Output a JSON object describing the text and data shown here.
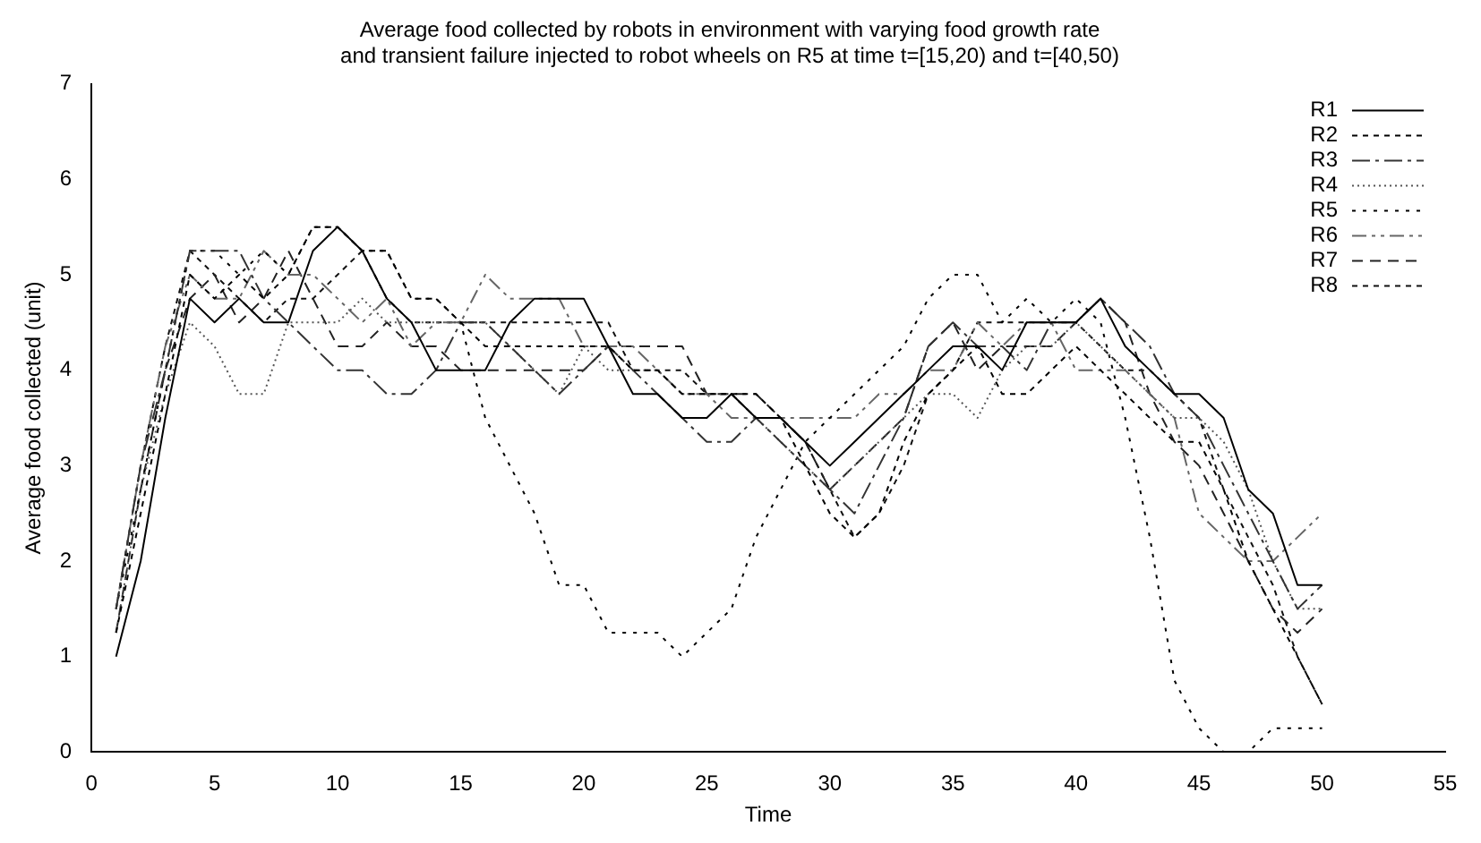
{
  "chart_data": {
    "type": "line",
    "title": "Average food collected by robots in environment with varying food growth rate\nand transient failure injected to robot wheels on R5 at time t=[15,20) and t=[40,50)",
    "xlabel": "Time",
    "ylabel": "Average food collected (unit)",
    "x": [
      1,
      2,
      3,
      4,
      5,
      6,
      7,
      8,
      9,
      10,
      11,
      12,
      13,
      14,
      15,
      16,
      17,
      18,
      19,
      20,
      21,
      22,
      23,
      24,
      25,
      26,
      27,
      28,
      29,
      30,
      31,
      32,
      33,
      34,
      35,
      36,
      37,
      38,
      39,
      40,
      41,
      42,
      43,
      44,
      45,
      46,
      47,
      48,
      49,
      50
    ],
    "xlim": [
      0,
      55
    ],
    "xticks": [
      0,
      5,
      10,
      15,
      20,
      25,
      30,
      35,
      40,
      45,
      50,
      55
    ],
    "ylim": [
      0,
      7
    ],
    "yticks": [
      0,
      1,
      2,
      3,
      4,
      5,
      6,
      7
    ],
    "grid": false,
    "legend": "top right",
    "marker": "none",
    "series": [
      {
        "name": "R1",
        "color": "#000000",
        "line_style": "solid",
        "values": [
          1,
          2,
          3.5,
          4.75,
          4.5,
          4.75,
          4.5,
          4.5,
          5.25,
          5.5,
          5.25,
          4.75,
          4.5,
          4,
          4,
          4,
          4.5,
          4.75,
          4.75,
          4.75,
          4.25,
          3.75,
          3.75,
          3.5,
          3.5,
          3.75,
          3.5,
          3.5,
          3.25,
          3,
          3.25,
          3.5,
          3.75,
          4,
          4.25,
          4.25,
          4,
          4.5,
          4.5,
          4.5,
          4.75,
          4.25,
          4,
          3.75,
          3.75,
          3.5,
          2.75,
          2.5,
          1.75,
          1.75
        ]
      },
      {
        "name": "R2",
        "color": "#000000",
        "line_style": "dashed",
        "values": [
          1.25,
          2.5,
          3.75,
          5,
          4.75,
          5,
          4.75,
          5,
          5.5,
          5.5,
          5.25,
          5.25,
          4.75,
          4.75,
          4.5,
          4.25,
          4.25,
          4.25,
          4.25,
          4.25,
          4.25,
          4,
          4,
          3.75,
          3.75,
          3.75,
          3.75,
          3.5,
          3,
          2.5,
          2.25,
          2.5,
          3.25,
          3.75,
          4,
          4.25,
          3.75,
          3.75,
          4,
          4.25,
          4,
          3.75,
          3.5,
          3.25,
          3.25,
          2.75,
          2,
          1.5,
          1,
          0.5
        ]
      },
      {
        "name": "R3",
        "color": "#333333",
        "line_style": "dashed",
        "values": [
          1.5,
          3,
          4,
          5.25,
          5.25,
          5.25,
          4.75,
          4.5,
          4.25,
          4,
          4,
          3.75,
          3.75,
          4,
          4.5,
          4.5,
          4.25,
          4,
          3.75,
          4,
          4.25,
          4,
          3.75,
          3.5,
          3.25,
          3.25,
          3.5,
          3.25,
          3,
          2.75,
          2.5,
          3,
          3.5,
          4.25,
          4.5,
          4.25,
          4.25,
          4,
          4.5,
          4.5,
          4.75,
          4.5,
          4.25,
          3.75,
          3.5,
          3,
          2.5,
          2,
          1.5,
          1.75
        ]
      },
      {
        "name": "R4",
        "color": "#555555",
        "line_style": "dotted",
        "values": [
          1.25,
          2.75,
          3.75,
          4.5,
          4.25,
          3.75,
          3.75,
          4.5,
          4.5,
          4.5,
          4.75,
          4.5,
          4.5,
          4.5,
          4.5,
          4.5,
          4.25,
          4,
          3.75,
          4.25,
          4,
          4,
          4,
          3.75,
          3.75,
          3.75,
          3.5,
          3.25,
          3,
          2.75,
          3,
          3.25,
          3.5,
          3.75,
          3.75,
          3.5,
          4,
          4.25,
          4.25,
          4.5,
          4.25,
          4,
          3.75,
          3.5,
          3.5,
          3.25,
          2.75,
          2,
          1.5,
          1.5
        ]
      },
      {
        "name": "R5",
        "color": "#000000",
        "line_style": "dashed",
        "values": [
          1.5,
          2.75,
          4,
          5.25,
          5.25,
          5,
          5.25,
          5,
          5.5,
          5.5,
          5.25,
          5.25,
          4.75,
          4.75,
          4.5,
          3.5,
          3,
          2.5,
          1.75,
          1.75,
          1.25,
          1.25,
          1.25,
          1,
          1.25,
          1.5,
          2.25,
          2.75,
          3.25,
          3.5,
          3.75,
          4,
          4.25,
          4.75,
          5,
          5,
          4.5,
          4.75,
          4.5,
          4.75,
          4.5,
          3.5,
          2.25,
          0.75,
          0.25,
          0,
          0,
          0.25,
          0.25,
          0.25
        ]
      },
      {
        "name": "R6",
        "color": "#666666",
        "line_style": "dashed",
        "values": [
          1.5,
          3,
          4.25,
          5,
          4.75,
          4.75,
          5.25,
          5,
          5,
          4.75,
          4.5,
          4.75,
          4.25,
          4.5,
          4.5,
          5,
          4.75,
          4.75,
          4.75,
          4.25,
          4.25,
          4.25,
          4,
          3.75,
          3.75,
          3.5,
          3.5,
          3.5,
          3.5,
          3.5,
          3.5,
          3.75,
          3.75,
          4,
          4,
          4.5,
          4.25,
          4.5,
          4.5,
          4,
          4,
          4,
          3.75,
          3.5,
          2.5,
          2.25,
          2,
          2,
          2.25,
          2.5
        ]
      },
      {
        "name": "R7",
        "color": "#222222",
        "line_style": "dashed",
        "values": [
          1.25,
          2.75,
          4,
          4.75,
          5,
          4.5,
          4.75,
          5.25,
          4.75,
          4.25,
          4.25,
          4.5,
          4.25,
          4.25,
          4,
          4,
          4,
          4,
          4,
          4,
          4.25,
          4.25,
          4.25,
          4.25,
          3.75,
          3.75,
          3.75,
          3.5,
          3.25,
          2.75,
          3,
          3.25,
          3.5,
          4.25,
          4.5,
          4,
          4.25,
          4.25,
          4.25,
          4.5,
          4.75,
          4.5,
          3.75,
          3.25,
          3,
          2.5,
          2,
          1.5,
          1.25,
          1.5
        ]
      },
      {
        "name": "R8",
        "color": "#111111",
        "line_style": "dashed",
        "values": [
          1.5,
          3,
          4.25,
          5.25,
          5,
          4.75,
          4.5,
          4.75,
          4.75,
          5,
          5.25,
          4.75,
          4.5,
          4.5,
          4.5,
          4.5,
          4.5,
          4.5,
          4.5,
          4.5,
          4.5,
          4,
          4,
          4,
          3.75,
          3.75,
          3.5,
          3.5,
          3.25,
          2.75,
          2.25,
          2.5,
          3,
          3.75,
          4,
          4.5,
          4.5,
          4.5,
          4.5,
          4.5,
          4.25,
          4,
          4,
          3.75,
          3.5,
          2.75,
          2.25,
          1.75,
          1,
          0.5
        ]
      }
    ]
  }
}
